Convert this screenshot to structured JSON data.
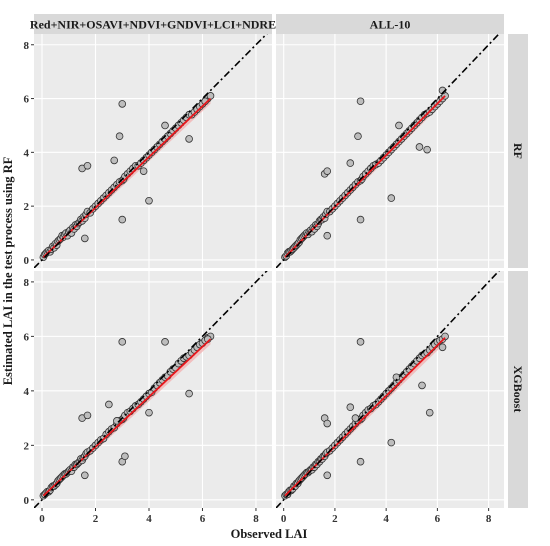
{
  "figure": {
    "xlabel": "Observed LAI",
    "ylabel": "Estimated LAI in the test process using RF",
    "col_strips": [
      "Red+NIR+OSAVI+NDVI+GNDVI+LCI+NDRE",
      "ALL-10"
    ],
    "row_strips": [
      "RF",
      "XGBoost"
    ],
    "colors": {
      "panel_bg": "#ebebeb",
      "grid": "#ffffff",
      "strip_bg": "#d9d9d9",
      "point_fill": "#bdbdbd",
      "point_stroke": "#333333",
      "fit_line": "#e8161b",
      "fit_band": "#f2b3b3",
      "identity_line": "#000000"
    }
  },
  "chart_data": [
    {
      "type": "scatter",
      "row": "RF",
      "col": "Red+NIR+OSAVI+NDVI+GNDVI+LCI+NDRE",
      "xlim": [
        -0.3,
        8.6
      ],
      "ylim": [
        -0.3,
        8.4
      ],
      "xticks": [
        0,
        2,
        4,
        6,
        8
      ],
      "yticks": [
        0,
        2,
        4,
        6,
        8
      ],
      "identity_line": true,
      "fit": {
        "x0": 0.05,
        "y0": 0.1,
        "x1": 6.3,
        "y1": 6.0
      },
      "x": [
        0.05,
        0.1,
        0.15,
        0.2,
        0.25,
        0.3,
        0.35,
        0.4,
        0.45,
        0.5,
        0.55,
        0.6,
        0.65,
        0.7,
        0.75,
        0.8,
        0.85,
        0.9,
        0.95,
        1.0,
        1.05,
        1.1,
        1.15,
        1.2,
        1.25,
        1.3,
        1.35,
        1.4,
        1.45,
        1.5,
        1.55,
        1.6,
        1.65,
        1.7,
        1.8,
        1.9,
        2.0,
        2.1,
        2.2,
        2.3,
        2.4,
        2.5,
        2.6,
        2.7,
        2.8,
        2.9,
        3.0,
        3.05,
        3.1,
        3.2,
        3.3,
        3.4,
        3.5,
        3.6,
        3.7,
        3.8,
        3.9,
        4.0,
        4.1,
        4.2,
        4.3,
        4.4,
        4.5,
        4.6,
        4.7,
        4.8,
        4.9,
        5.0,
        5.1,
        5.2,
        5.3,
        5.4,
        5.5,
        5.6,
        5.7,
        5.8,
        5.9,
        6.0,
        6.1,
        6.2,
        6.3,
        1.5,
        1.7,
        3.0,
        3.0,
        2.9,
        3.8,
        4.0,
        4.6,
        5.5,
        6.1,
        2.7,
        1.6
      ],
      "y": [
        0.1,
        0.2,
        0.25,
        0.3,
        0.35,
        0.3,
        0.4,
        0.5,
        0.45,
        0.6,
        0.55,
        0.7,
        0.75,
        0.8,
        0.9,
        0.85,
        0.95,
        1.0,
        0.9,
        1.05,
        1.1,
        1.0,
        1.2,
        1.15,
        1.3,
        1.25,
        1.35,
        1.4,
        1.5,
        1.45,
        1.6,
        1.55,
        1.7,
        1.8,
        1.75,
        1.9,
        2.0,
        2.1,
        2.2,
        2.3,
        2.4,
        2.5,
        2.6,
        2.7,
        2.8,
        2.9,
        2.95,
        3.0,
        3.1,
        3.2,
        3.3,
        3.4,
        3.5,
        3.5,
        3.6,
        3.7,
        3.8,
        3.9,
        4.0,
        4.1,
        4.2,
        4.3,
        4.4,
        4.5,
        4.6,
        4.7,
        4.8,
        4.9,
        5.0,
        5.1,
        5.2,
        5.3,
        5.4,
        5.4,
        5.5,
        5.6,
        5.7,
        5.8,
        5.9,
        6.0,
        6.1,
        3.4,
        3.5,
        5.8,
        1.5,
        4.6,
        3.3,
        2.2,
        5.0,
        4.5,
        5.9,
        3.7,
        0.8
      ]
    },
    {
      "type": "scatter",
      "row": "RF",
      "col": "ALL-10",
      "xlim": [
        -0.3,
        8.6
      ],
      "ylim": [
        -0.3,
        8.4
      ],
      "xticks": [
        0,
        2,
        4,
        6,
        8
      ],
      "yticks": [
        0,
        2,
        4,
        6,
        8
      ],
      "identity_line": true,
      "fit": {
        "x0": 0.05,
        "y0": 0.1,
        "x1": 6.3,
        "y1": 6.1
      },
      "x": [
        0.05,
        0.1,
        0.15,
        0.2,
        0.25,
        0.3,
        0.35,
        0.4,
        0.45,
        0.5,
        0.55,
        0.6,
        0.65,
        0.7,
        0.75,
        0.8,
        0.85,
        0.9,
        0.95,
        1.0,
        1.05,
        1.1,
        1.15,
        1.2,
        1.25,
        1.3,
        1.35,
        1.4,
        1.45,
        1.5,
        1.55,
        1.6,
        1.65,
        1.7,
        1.8,
        1.9,
        2.0,
        2.1,
        2.2,
        2.3,
        2.4,
        2.5,
        2.6,
        2.7,
        2.8,
        2.9,
        3.0,
        3.05,
        3.1,
        3.2,
        3.3,
        3.4,
        3.5,
        3.6,
        3.7,
        3.8,
        3.9,
        4.0,
        4.1,
        4.2,
        4.3,
        4.4,
        4.5,
        4.6,
        4.7,
        4.8,
        4.9,
        5.0,
        5.1,
        5.2,
        5.3,
        5.4,
        5.5,
        5.6,
        5.7,
        5.8,
        5.9,
        6.0,
        6.1,
        6.2,
        6.3,
        1.6,
        1.7,
        3.0,
        3.0,
        2.9,
        4.2,
        4.5,
        5.3,
        5.6,
        6.2,
        2.6,
        1.7
      ],
      "y": [
        0.1,
        0.15,
        0.25,
        0.3,
        0.3,
        0.35,
        0.4,
        0.45,
        0.5,
        0.55,
        0.6,
        0.65,
        0.75,
        0.8,
        0.85,
        0.9,
        0.95,
        1.0,
        0.95,
        1.05,
        1.1,
        1.05,
        1.2,
        1.15,
        1.3,
        1.25,
        1.35,
        1.45,
        1.5,
        1.5,
        1.6,
        1.55,
        1.7,
        1.8,
        1.8,
        1.9,
        2.0,
        2.1,
        2.2,
        2.3,
        2.4,
        2.5,
        2.6,
        2.7,
        2.8,
        2.9,
        2.95,
        3.0,
        3.1,
        3.2,
        3.3,
        3.4,
        3.5,
        3.55,
        3.6,
        3.7,
        3.8,
        3.9,
        4.0,
        4.1,
        4.2,
        4.3,
        4.4,
        4.5,
        4.6,
        4.7,
        4.8,
        4.9,
        5.0,
        5.1,
        5.2,
        5.3,
        5.4,
        5.45,
        5.5,
        5.6,
        5.7,
        5.8,
        5.9,
        6.0,
        6.1,
        3.2,
        3.3,
        5.9,
        1.5,
        4.6,
        2.3,
        5.0,
        4.2,
        4.1,
        6.3,
        3.6,
        0.9
      ]
    },
    {
      "type": "scatter",
      "row": "XGBoost",
      "col": "Red+NIR+OSAVI+NDVI+GNDVI+LCI+NDRE",
      "xlim": [
        -0.3,
        8.6
      ],
      "ylim": [
        -0.3,
        8.4
      ],
      "xticks": [
        0,
        2,
        4,
        6,
        8
      ],
      "yticks": [
        0,
        2,
        4,
        6,
        8
      ],
      "identity_line": true,
      "fit": {
        "x0": 0.05,
        "y0": 0.15,
        "x1": 6.3,
        "y1": 5.9
      },
      "x": [
        0.05,
        0.1,
        0.15,
        0.2,
        0.25,
        0.3,
        0.35,
        0.4,
        0.45,
        0.5,
        0.55,
        0.6,
        0.65,
        0.7,
        0.75,
        0.8,
        0.85,
        0.9,
        0.95,
        1.0,
        1.05,
        1.1,
        1.15,
        1.2,
        1.25,
        1.3,
        1.35,
        1.4,
        1.45,
        1.5,
        1.55,
        1.6,
        1.65,
        1.7,
        1.8,
        1.9,
        2.0,
        2.1,
        2.2,
        2.3,
        2.4,
        2.5,
        2.6,
        2.7,
        2.8,
        2.9,
        3.0,
        3.05,
        3.1,
        3.2,
        3.3,
        3.4,
        3.5,
        3.6,
        3.7,
        3.8,
        3.9,
        4.0,
        4.1,
        4.2,
        4.3,
        4.4,
        4.5,
        4.6,
        4.7,
        4.8,
        4.9,
        5.0,
        5.1,
        5.2,
        5.3,
        5.4,
        5.5,
        5.6,
        5.7,
        5.8,
        5.9,
        6.0,
        6.1,
        6.2,
        6.3,
        1.5,
        1.7,
        3.0,
        3.0,
        2.8,
        4.0,
        4.6,
        3.1,
        5.5,
        6.2,
        2.5,
        1.6
      ],
      "y": [
        0.15,
        0.2,
        0.25,
        0.3,
        0.3,
        0.35,
        0.45,
        0.5,
        0.5,
        0.55,
        0.6,
        0.7,
        0.75,
        0.8,
        0.85,
        0.9,
        0.95,
        0.95,
        1.0,
        1.05,
        1.1,
        1.05,
        1.2,
        1.2,
        1.3,
        1.3,
        1.35,
        1.4,
        1.5,
        1.45,
        1.55,
        1.6,
        1.7,
        1.75,
        1.8,
        1.9,
        2.0,
        2.1,
        2.2,
        2.25,
        2.4,
        2.5,
        2.6,
        2.65,
        2.8,
        2.9,
        2.95,
        3.0,
        3.1,
        3.2,
        3.25,
        3.35,
        3.45,
        3.5,
        3.6,
        3.7,
        3.8,
        3.9,
        3.95,
        4.1,
        4.2,
        4.3,
        4.4,
        4.5,
        4.55,
        4.7,
        4.8,
        4.85,
        5.0,
        5.1,
        5.2,
        5.25,
        5.3,
        5.4,
        5.5,
        5.6,
        5.7,
        5.75,
        5.85,
        5.95,
        6.0,
        3.0,
        3.1,
        5.8,
        1.4,
        2.9,
        3.2,
        5.8,
        1.6,
        3.9,
        5.9,
        3.5,
        0.9
      ]
    },
    {
      "type": "scatter",
      "row": "XGBoost",
      "col": "ALL-10",
      "xlim": [
        -0.3,
        8.6
      ],
      "ylim": [
        -0.3,
        8.4
      ],
      "xticks": [
        0,
        2,
        4,
        6,
        8
      ],
      "yticks": [
        0,
        2,
        4,
        6,
        8
      ],
      "identity_line": true,
      "fit": {
        "x0": 0.05,
        "y0": 0.15,
        "x1": 6.3,
        "y1": 5.95
      },
      "x": [
        0.05,
        0.1,
        0.15,
        0.2,
        0.25,
        0.3,
        0.35,
        0.4,
        0.45,
        0.5,
        0.55,
        0.6,
        0.65,
        0.7,
        0.75,
        0.8,
        0.85,
        0.9,
        0.95,
        1.0,
        1.05,
        1.1,
        1.15,
        1.2,
        1.25,
        1.3,
        1.35,
        1.4,
        1.45,
        1.5,
        1.55,
        1.6,
        1.65,
        1.7,
        1.8,
        1.9,
        2.0,
        2.1,
        2.2,
        2.3,
        2.4,
        2.5,
        2.6,
        2.7,
        2.8,
        2.9,
        3.0,
        3.05,
        3.1,
        3.2,
        3.3,
        3.4,
        3.5,
        3.6,
        3.7,
        3.8,
        3.9,
        4.0,
        4.1,
        4.2,
        4.3,
        4.4,
        4.5,
        4.6,
        4.7,
        4.8,
        4.9,
        5.0,
        5.1,
        5.2,
        5.3,
        5.4,
        5.5,
        5.6,
        5.7,
        5.8,
        5.9,
        6.0,
        6.1,
        6.2,
        6.3,
        1.6,
        1.7,
        3.0,
        3.0,
        2.8,
        4.2,
        4.4,
        5.7,
        5.4,
        6.2,
        2.6,
        1.7
      ],
      "y": [
        0.15,
        0.2,
        0.2,
        0.3,
        0.35,
        0.35,
        0.4,
        0.5,
        0.5,
        0.6,
        0.6,
        0.7,
        0.75,
        0.8,
        0.85,
        0.9,
        0.95,
        1.0,
        1.0,
        1.05,
        1.1,
        1.1,
        1.2,
        1.2,
        1.3,
        1.3,
        1.4,
        1.4,
        1.5,
        1.5,
        1.6,
        1.6,
        1.7,
        1.75,
        1.8,
        1.9,
        2.0,
        2.1,
        2.2,
        2.3,
        2.4,
        2.5,
        2.6,
        2.7,
        2.8,
        2.9,
        2.95,
        3.0,
        3.1,
        3.2,
        3.3,
        3.35,
        3.45,
        3.5,
        3.6,
        3.7,
        3.8,
        3.9,
        4.0,
        4.1,
        4.2,
        4.3,
        4.4,
        4.5,
        4.6,
        4.7,
        4.8,
        4.9,
        5.0,
        5.1,
        5.2,
        5.3,
        5.35,
        5.4,
        5.5,
        5.6,
        5.7,
        5.8,
        5.85,
        5.9,
        6.0,
        3.0,
        2.8,
        5.8,
        1.4,
        3.0,
        2.1,
        4.5,
        3.2,
        4.2,
        5.6,
        3.4,
        0.9
      ]
    }
  ]
}
